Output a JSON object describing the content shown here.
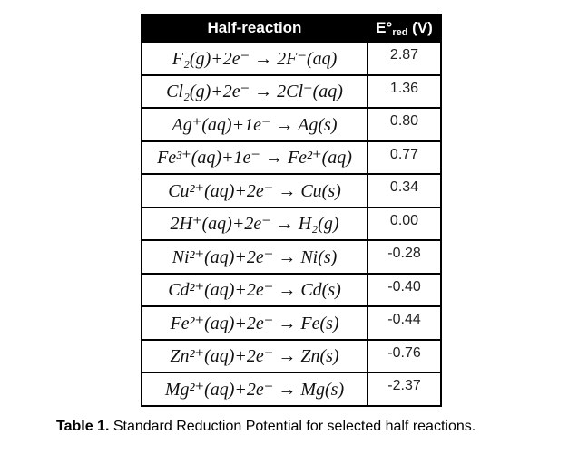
{
  "table": {
    "header": {
      "reaction": "Half-reaction",
      "potential_main": "E°",
      "potential_sub": "red",
      "potential_unit": " (V)"
    },
    "rows": [
      {
        "reaction": "F₂(g)+2e⁻ → 2F⁻(aq)",
        "potential": "2.87"
      },
      {
        "reaction": "Cl₂(g)+2e⁻ → 2Cl⁻(aq)",
        "potential": "1.36"
      },
      {
        "reaction": "Ag⁺(aq)+1e⁻ → Ag(s)",
        "potential": "0.80"
      },
      {
        "reaction": "Fe³⁺(aq)+1e⁻ → Fe²⁺(aq)",
        "potential": "0.77"
      },
      {
        "reaction": "Cu²⁺(aq)+2e⁻ → Cu(s)",
        "potential": "0.34"
      },
      {
        "reaction": "2H⁺(aq)+2e⁻ → H₂(g)",
        "potential": "0.00"
      },
      {
        "reaction": "Ni²⁺(aq)+2e⁻ → Ni(s)",
        "potential": "-0.28"
      },
      {
        "reaction": "Cd²⁺(aq)+2e⁻ → Cd(s)",
        "potential": "-0.40"
      },
      {
        "reaction": "Fe²⁺(aq)+2e⁻ → Fe(s)",
        "potential": "-0.44"
      },
      {
        "reaction": "Zn²⁺(aq)+2e⁻ → Zn(s)",
        "potential": "-0.76"
      },
      {
        "reaction": "Mg²⁺(aq)+2e⁻ → Mg(s)",
        "potential": "-2.37"
      }
    ]
  },
  "caption": {
    "label": "Table 1.",
    "text": " Standard Reduction Potential for selected half reactions."
  }
}
